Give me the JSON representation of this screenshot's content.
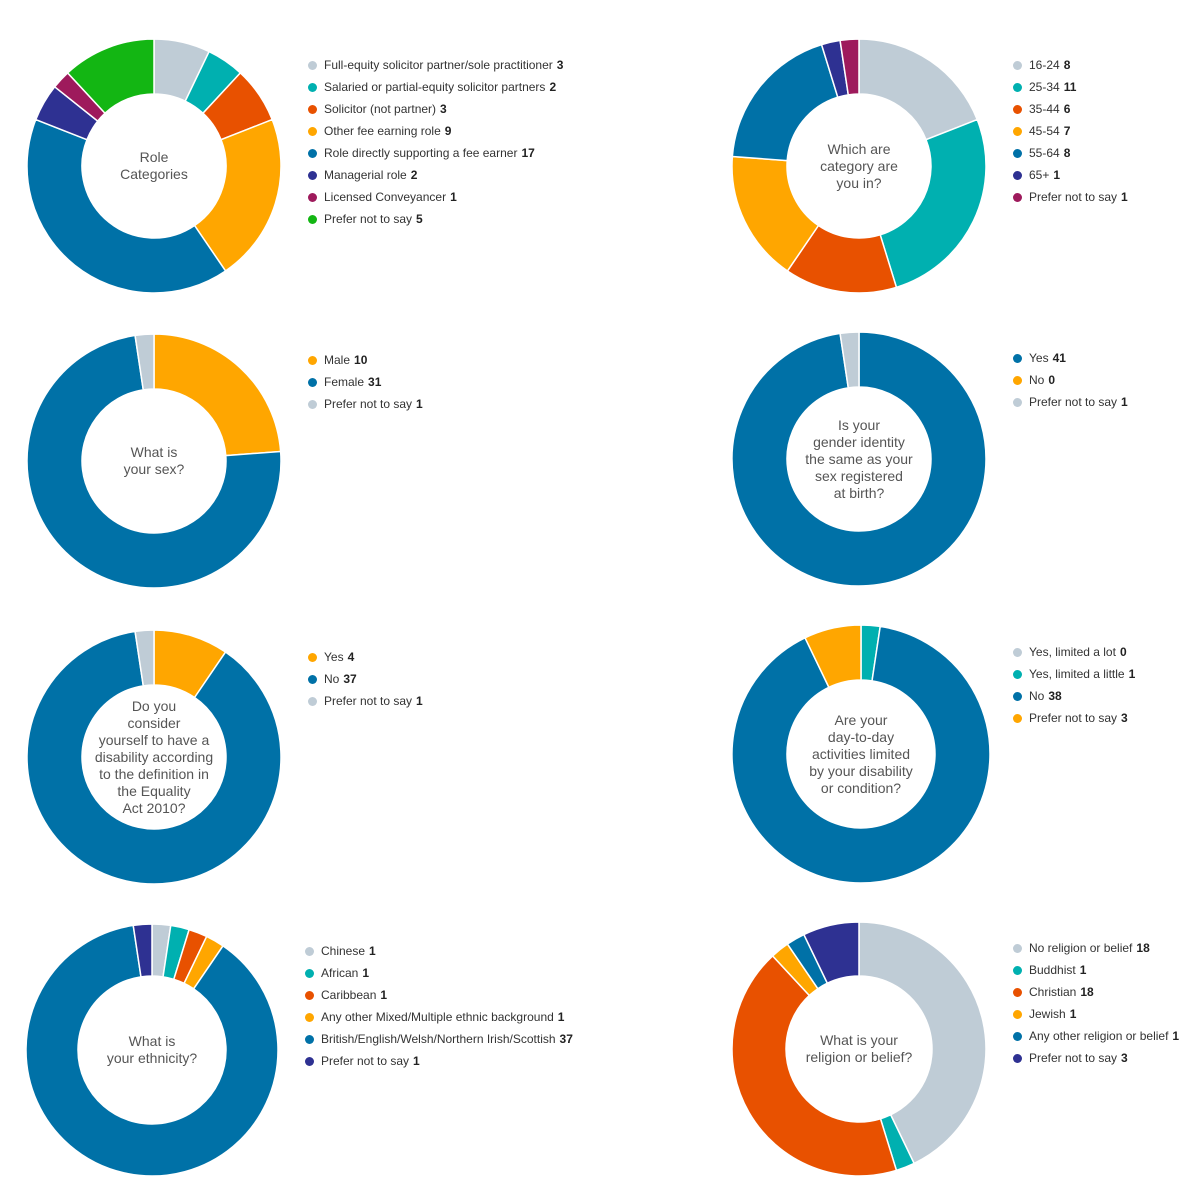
{
  "chart_data": [
    {
      "type": "pie",
      "title": [
        "Role",
        "Categories"
      ],
      "categories": [
        "Full-equity solicitor partner/sole practitioner",
        "Salaried or partial-equity solicitor partners",
        "Solicitor (not partner)",
        "Other fee earning role",
        "Role directly supporting a fee earner",
        "Managerial role",
        "Licensed Conveyancer",
        "Prefer not to say"
      ],
      "values": [
        3,
        2,
        3,
        9,
        17,
        2,
        1,
        5
      ],
      "colors": [
        "#bfccd6",
        "#00b0b0",
        "#e85100",
        "#ffa600",
        "#0071a7",
        "#2e3192",
        "#9e1a5c",
        "#13b613"
      ],
      "legend_position": "right"
    },
    {
      "type": "pie",
      "title": [
        "Which are",
        "category are",
        "you in?"
      ],
      "categories": [
        "16-24",
        "25-34",
        "35-44",
        "45-54",
        "55-64",
        "65+",
        "Prefer not to say"
      ],
      "values": [
        8,
        11,
        6,
        7,
        8,
        1,
        1
      ],
      "colors": [
        "#bfccd6",
        "#00b0b0",
        "#e85100",
        "#ffa600",
        "#0071a7",
        "#2e3192",
        "#9e1a5c"
      ],
      "legend_position": "right"
    },
    {
      "type": "pie",
      "title": [
        "What is",
        "your sex?"
      ],
      "categories": [
        "Male",
        "Female",
        "Prefer not to say"
      ],
      "values": [
        10,
        31,
        1
      ],
      "colors": [
        "#ffa600",
        "#0071a7",
        "#bfccd6"
      ],
      "legend_position": "right"
    },
    {
      "type": "pie",
      "title": [
        "Is your",
        "gender identity",
        "the same as your",
        "sex registered",
        "at birth?"
      ],
      "categories": [
        "Yes",
        "No",
        "Prefer not to say"
      ],
      "values": [
        41,
        0,
        1
      ],
      "colors": [
        "#0071a7",
        "#ffa600",
        "#bfccd6"
      ],
      "legend_position": "right"
    },
    {
      "type": "pie",
      "title": [
        "Do you",
        "consider",
        "yourself to have a",
        "disability according",
        "to the definition in",
        "the Equality",
        "Act 2010?"
      ],
      "categories": [
        "Yes",
        "No",
        "Prefer not to say"
      ],
      "values": [
        4,
        37,
        1
      ],
      "colors": [
        "#ffa600",
        "#0071a7",
        "#bfccd6"
      ],
      "legend_position": "right"
    },
    {
      "type": "pie",
      "title": [
        "Are your",
        "day-to-day",
        "activities limited",
        "by your disability",
        "or condition?"
      ],
      "categories": [
        "Yes, limited a lot",
        "Yes, limited a little",
        "No",
        "Prefer not to say"
      ],
      "values": [
        0,
        1,
        38,
        3
      ],
      "colors": [
        "#bfccd6",
        "#00b0b0",
        "#0071a7",
        "#ffa600"
      ],
      "legend_position": "right"
    },
    {
      "type": "pie",
      "title": [
        "What is",
        "your ethnicity?"
      ],
      "categories": [
        "Chinese",
        "African",
        "Caribbean",
        "Any other Mixed/Multiple ethnic background",
        "British/English/Welsh/Northern Irish/Scottish",
        "Prefer not to say"
      ],
      "values": [
        1,
        1,
        1,
        1,
        37,
        1
      ],
      "colors": [
        "#bfccd6",
        "#00b0b0",
        "#e85100",
        "#ffa600",
        "#0071a7",
        "#2e3192"
      ],
      "legend_position": "right"
    },
    {
      "type": "pie",
      "title": [
        "What is your",
        "religion or belief?"
      ],
      "categories": [
        "No religion or belief",
        "Buddhist",
        "Christian",
        "Jewish",
        "Any other religion or belief",
        "Prefer not to say"
      ],
      "values": [
        18,
        1,
        18,
        1,
        1,
        3
      ],
      "colors": [
        "#bfccd6",
        "#00b0b0",
        "#e85100",
        "#ffa600",
        "#0071a7",
        "#2e3192"
      ],
      "legend_position": "right"
    }
  ]
}
